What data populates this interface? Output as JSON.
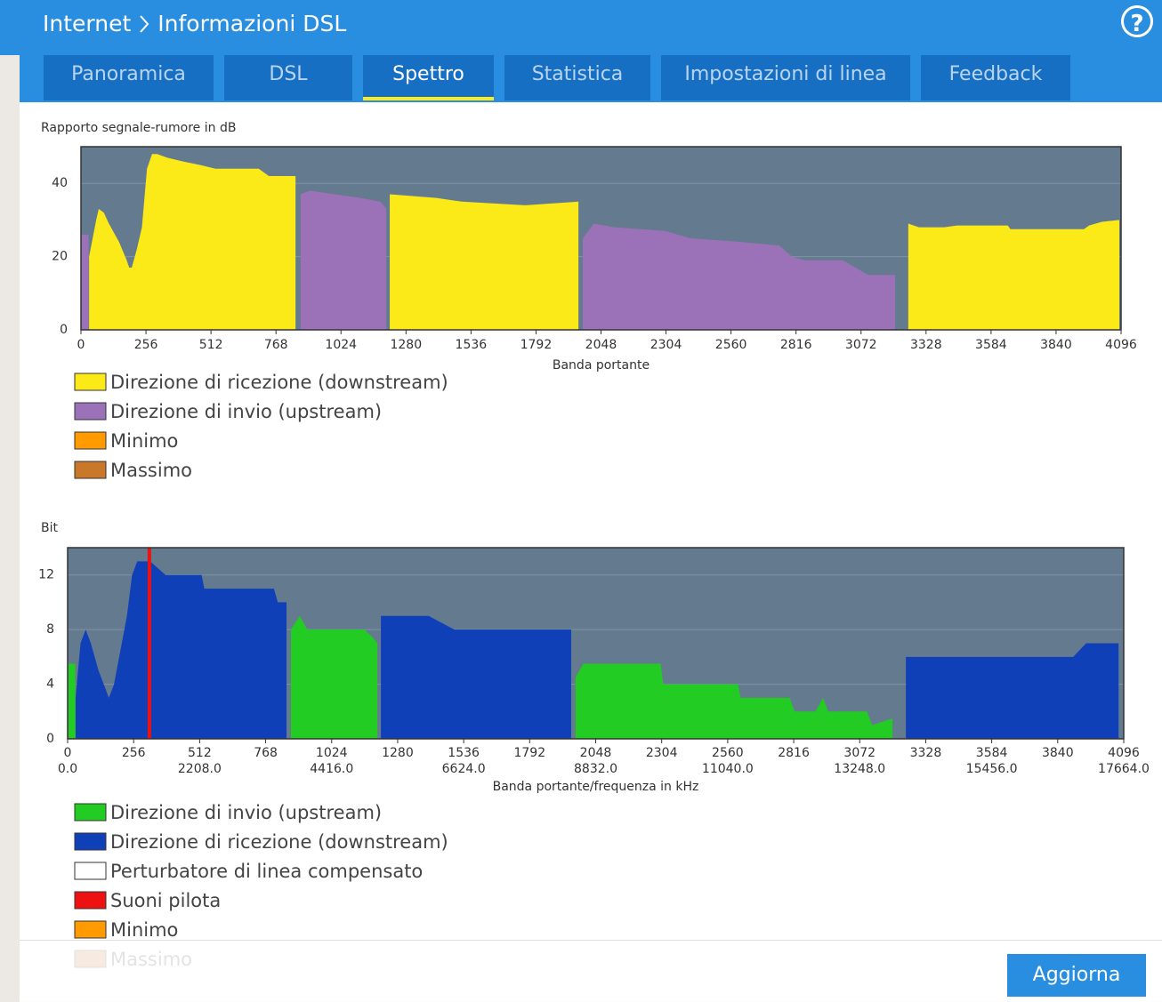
{
  "header": {
    "breadcrumb_1": "Internet",
    "breadcrumb_2": "Informazioni DSL",
    "help": "?"
  },
  "tabs": [
    "Panoramica",
    "DSL",
    "Spettro",
    "Statistica",
    "Impostazioni di linea",
    "Feedback"
  ],
  "active_tab": 2,
  "button": "Aggiorna",
  "chart_data": [
    {
      "type": "area",
      "title": "Rapporto segnale-rumore in dB",
      "x_label": "Banda portante",
      "xlim": [
        0,
        4096
      ],
      "xticks": [
        0,
        256,
        512,
        768,
        1024,
        1280,
        1536,
        1792,
        2048,
        2304,
        2560,
        2816,
        3072,
        3328,
        3584,
        3840,
        4096
      ],
      "ylim": [
        0,
        50
      ],
      "yticks": [
        0,
        20,
        40
      ],
      "grid": true,
      "background": "#647a8e",
      "series": [
        {
          "name": "Direzione di ricezione (downstream)",
          "color": "#fbe918",
          "x": [
            32,
            60,
            70,
            90,
            110,
            150,
            180,
            190,
            200,
            220,
            240,
            250,
            260,
            280,
            300,
            340,
            400,
            470,
            530,
            700,
            740,
            845,
            null,
            1216,
            1400,
            1500,
            1750,
            1959,
            null,
            2788,
            2796,
            null,
            3258,
            3300,
            3400,
            3450,
            3650,
            3660,
            3950,
            3970,
            4020,
            4089
          ],
          "values": [
            20,
            30,
            33,
            32,
            29,
            24,
            19,
            17,
            17,
            22,
            28,
            36,
            44,
            48,
            48,
            47,
            46,
            45,
            44,
            44,
            42,
            42,
            null,
            37,
            36,
            35,
            34,
            35,
            null,
            20,
            20,
            null,
            29,
            28,
            28,
            28.5,
            28.5,
            27.5,
            27.5,
            28.5,
            29.5,
            30
          ]
        },
        {
          "name": "Direzione di invio (upstream)",
          "color": "#9b72b8",
          "x": [
            3,
            30,
            null,
            865,
            900,
            1000,
            1100,
            1180,
            1202,
            null,
            1976,
            2020,
            2100,
            2300,
            2400,
            2600,
            2750,
            2800,
            2850,
            3000,
            3050,
            3100,
            3206
          ],
          "values": [
            26,
            26,
            null,
            37,
            38,
            37,
            36,
            35,
            33,
            null,
            25,
            29,
            28,
            27,
            25,
            24,
            23,
            20,
            19,
            19,
            17,
            15,
            15
          ]
        }
      ],
      "other_legend": [
        {
          "name": "Minimo",
          "color": "#ff9a00"
        },
        {
          "name": "Massimo",
          "color": "#c87828"
        }
      ]
    },
    {
      "type": "area",
      "title": "Bit",
      "x_label": "Banda portante/frequenza in kHz",
      "xlim": [
        0,
        4096
      ],
      "xticks": [
        0,
        256,
        512,
        768,
        1024,
        1280,
        1536,
        1792,
        2048,
        2304,
        2560,
        2816,
        3072,
        3328,
        3584,
        3840,
        4096
      ],
      "x2lim": [
        0,
        17664
      ],
      "x2ticks": [
        {
          "value": 0,
          "label": "0.0"
        },
        {
          "value": 2208,
          "label": "2208.0"
        },
        {
          "value": 4416,
          "label": "4416.0"
        },
        {
          "value": 6624,
          "label": "6624.0"
        },
        {
          "value": 8832,
          "label": "8832.0"
        },
        {
          "value": 11040,
          "label": "11040.0"
        },
        {
          "value": 13248,
          "label": "13248.0"
        },
        {
          "value": 15456,
          "label": "15456.0"
        },
        {
          "value": 17664,
          "label": "17664.0"
        }
      ],
      "ylim": [
        0,
        14
      ],
      "yticks": [
        0,
        4,
        8,
        12
      ],
      "grid": true,
      "background": "#647a8e",
      "series": [
        {
          "name": "Direzione di invio (upstream)",
          "color": "#22cc22",
          "x": [
            3,
            30,
            null,
            866,
            900,
            930,
            1150,
            1180,
            1201,
            null,
            1970,
            2000,
            2300,
            2310,
            2600,
            2610,
            2800,
            2820,
            2900,
            2930,
            2950,
            3100,
            3120,
            3199
          ],
          "values": [
            5.5,
            5.5,
            null,
            8,
            9,
            8,
            8,
            7.5,
            7,
            null,
            4.5,
            5.5,
            5.5,
            4,
            4,
            3,
            3,
            2,
            2,
            3,
            2,
            2,
            1,
            1.5
          ]
        },
        {
          "name": "Direzione di ricezione (downstream)",
          "color": "#1040b8",
          "x": [
            31,
            50,
            70,
            90,
            120,
            160,
            180,
            200,
            230,
            250,
            270,
            320,
            380,
            520,
            530,
            800,
            815,
            849,
            null,
            1215,
            1400,
            1500,
            1953,
            null,
            3251,
            3900,
            3950,
            4076
          ],
          "values": [
            3,
            7,
            8,
            7,
            5,
            3,
            4,
            6,
            9,
            12,
            13,
            13,
            12,
            12,
            11,
            11,
            10,
            10,
            null,
            9,
            9,
            8,
            8,
            null,
            6,
            6,
            7,
            7
          ]
        }
      ],
      "pilot": {
        "name": "Suoni pilota",
        "color": "#ee1111",
        "x": [
          317
        ]
      },
      "other_legend": [
        {
          "name": "Perturbatore di linea compensato",
          "color": "#ffffff"
        },
        {
          "name": "Minimo",
          "color": "#ff9a00"
        },
        {
          "name": "Massimo",
          "color": "#c87828"
        }
      ]
    }
  ]
}
